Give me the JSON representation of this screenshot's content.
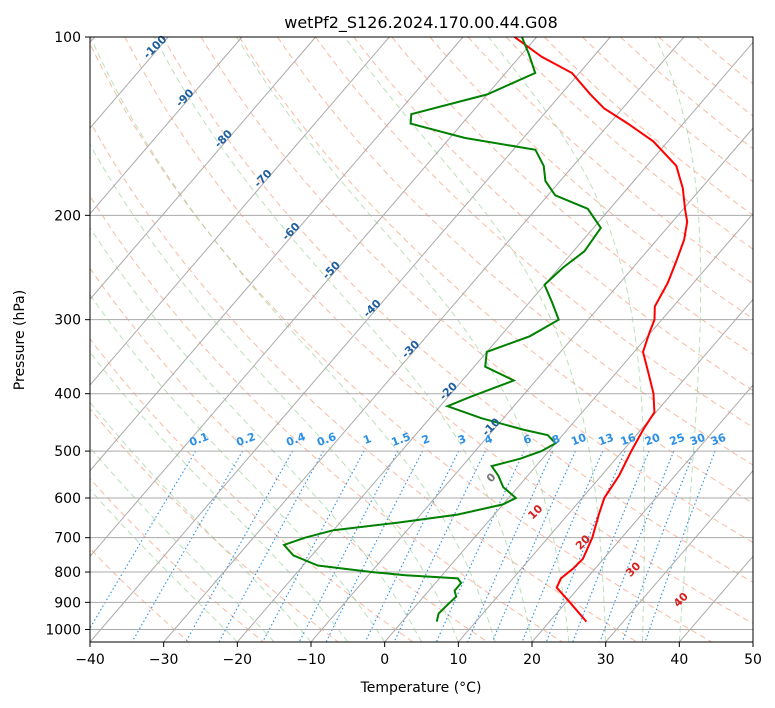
{
  "chart_data": {
    "type": "skew-t",
    "title": "wetPf2_S126.2024.170.00.44.G08",
    "xlabel": "Temperature (°C)",
    "ylabel": "Pressure (hPa)",
    "xlim": [
      -40,
      50
    ],
    "ylim": [
      1050,
      100
    ],
    "yscale": "log",
    "grid": true,
    "x_ticks": [
      "−40",
      "−30",
      "−20",
      "−10",
      "0",
      "10",
      "20",
      "30",
      "40",
      "50"
    ],
    "y_ticks": [
      "100",
      "200",
      "300",
      "400",
      "500",
      "600",
      "700",
      "800",
      "900",
      "1000"
    ],
    "series": [
      {
        "role": "temperature",
        "color": "#ff0000",
        "points": [
          [
            970,
            25
          ],
          [
            900,
            20.5
          ],
          [
            850,
            17
          ],
          [
            820,
            16.5
          ],
          [
            790,
            17
          ],
          [
            760,
            17.2
          ],
          [
            700,
            16
          ],
          [
            640,
            14.2
          ],
          [
            600,
            13
          ],
          [
            550,
            12.4
          ],
          [
            500,
            11.2
          ],
          [
            460,
            10.3
          ],
          [
            430,
            9.8
          ],
          [
            400,
            7.5
          ],
          [
            370,
            4.5
          ],
          [
            340,
            1.2
          ],
          [
            315,
            -0.2
          ],
          [
            300,
            -1
          ],
          [
            285,
            -2.5
          ],
          [
            260,
            -3.5
          ],
          [
            240,
            -4.8
          ],
          [
            220,
            -6.3
          ],
          [
            205,
            -8
          ],
          [
            195,
            -9.8
          ],
          [
            180,
            -12.5
          ],
          [
            165,
            -16
          ],
          [
            150,
            -22
          ],
          [
            140,
            -27.5
          ],
          [
            132,
            -32.5
          ],
          [
            125,
            -36
          ],
          [
            115,
            -41
          ],
          [
            108,
            -47
          ],
          [
            100,
            -53
          ]
        ]
      },
      {
        "role": "dewpoint",
        "color": "#008000",
        "points": [
          [
            970,
            4.7
          ],
          [
            940,
            4
          ],
          [
            905,
            4.2
          ],
          [
            880,
            4.4
          ],
          [
            860,
            3.5
          ],
          [
            835,
            3.5
          ],
          [
            820,
            2.5
          ],
          [
            810,
            -5
          ],
          [
            800,
            -10
          ],
          [
            780,
            -18
          ],
          [
            750,
            -22.5
          ],
          [
            720,
            -25
          ],
          [
            700,
            -23
          ],
          [
            680,
            -20
          ],
          [
            660,
            -12
          ],
          [
            640,
            -5
          ],
          [
            615,
            0
          ],
          [
            600,
            1
          ],
          [
            575,
            -2
          ],
          [
            550,
            -4
          ],
          [
            530,
            -6
          ],
          [
            515,
            -3
          ],
          [
            500,
            -1
          ],
          [
            485,
            0
          ],
          [
            470,
            -2
          ],
          [
            460,
            -6
          ],
          [
            440,
            -13
          ],
          [
            420,
            -19
          ],
          [
            405,
            -17
          ],
          [
            380,
            -13
          ],
          [
            360,
            -18.5
          ],
          [
            340,
            -20
          ],
          [
            320,
            -16
          ],
          [
            300,
            -14
          ],
          [
            280,
            -17
          ],
          [
            262,
            -20
          ],
          [
            245,
            -19.5
          ],
          [
            230,
            -18.5
          ],
          [
            210,
            -19
          ],
          [
            195,
            -23
          ],
          [
            185,
            -29
          ],
          [
            175,
            -32
          ],
          [
            165,
            -34
          ],
          [
            155,
            -37
          ],
          [
            148,
            -48
          ],
          [
            140,
            -57
          ],
          [
            135,
            -58
          ],
          [
            125,
            -50
          ],
          [
            115,
            -46
          ],
          [
            107,
            -49
          ],
          [
            100,
            -52
          ]
        ]
      }
    ],
    "dry_adiabat_labels": [
      "-100",
      "-90",
      "-80",
      "-70",
      "-60",
      "-50",
      "-40",
      "-30",
      "-20",
      "-10",
      "0",
      "10",
      "20",
      "30",
      "40"
    ],
    "mixing_ratio_labels": [
      "0.1",
      "0.2",
      "0.4",
      "0.6",
      "1",
      "1.5",
      "2",
      "3",
      "4",
      "6",
      "8",
      "10",
      "13",
      "16",
      "20",
      "25",
      "30",
      "36"
    ]
  }
}
